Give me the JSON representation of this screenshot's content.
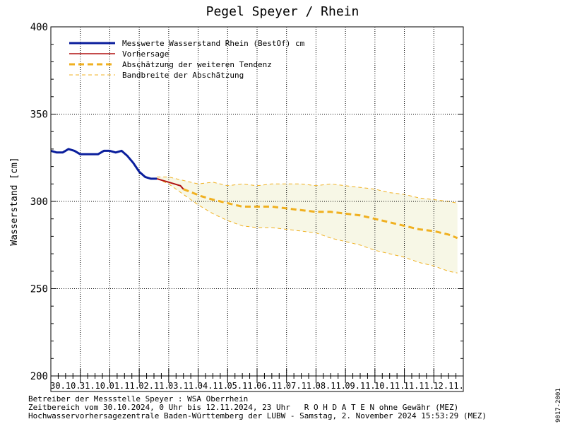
{
  "footer": {
    "line1": "Betreiber der Messstelle Speyer : WSA Oberrhein",
    "line2": "Zeitbereich vom 30.10.2024, 0 Uhr bis 12.11.2024, 23 Uhr   R O H D A T E N ohne Gewähr (MEZ)",
    "line3": "Hochwasservorhersagezentrale Baden-Württemberg der LUBW - Samstag, 2. November 2024 15:53:29 (MEZ)"
  },
  "side_id": "9017-2001",
  "colors": {
    "measured": "#0a1e9c",
    "forecast": "#b01010",
    "estimate": "#f0b020",
    "band_fill": "#f7f7e6",
    "grid": "#000000"
  },
  "chart_data": {
    "type": "line",
    "title": "Pegel Speyer / Rhein",
    "ylabel": "Wasserstand [cm]",
    "xlabel": "",
    "ylim": [
      200,
      400
    ],
    "yticks": [
      200,
      250,
      300,
      350,
      400
    ],
    "x_unit": "days since 30.10.2024 00:00",
    "xlim": [
      0,
      14
    ],
    "categories": [
      "30.10.",
      "31.10.",
      "01.11.",
      "02.11.",
      "03.11.",
      "04.11.",
      "05.11.",
      "06.11.",
      "07.11.",
      "08.11.",
      "09.11.",
      "10.11.",
      "11.11.",
      "12.11."
    ],
    "grid": true,
    "legend_position": "top-left",
    "legend": [
      "Messwerte Wasserstand Rhein (BestOf)  cm",
      "Vorhersage",
      "Abschätzung der weiteren Tendenz",
      "Bandbreite der Abschätzung"
    ],
    "series": [
      {
        "name": "Messwerte Wasserstand Rhein (BestOf)  cm",
        "style": "solid-thick",
        "x": [
          0,
          0.2,
          0.4,
          0.6,
          0.8,
          1.0,
          1.2,
          1.4,
          1.6,
          1.8,
          2.0,
          2.2,
          2.4,
          2.6,
          2.8,
          3.0,
          3.2,
          3.4,
          3.6
        ],
        "y": [
          329,
          328,
          328,
          330,
          329,
          327,
          327,
          327,
          327,
          329,
          329,
          328,
          329,
          326,
          322,
          317,
          314,
          313,
          313
        ]
      },
      {
        "name": "Vorhersage",
        "style": "solid",
        "x": [
          3.6,
          3.8,
          4.0,
          4.2,
          4.4,
          4.5
        ],
        "y": [
          313,
          312,
          311,
          310,
          309,
          307
        ]
      },
      {
        "name": "Abschätzung der weiteren Tendenz",
        "style": "dashed-thick",
        "x": [
          4.5,
          4.8,
          5.1,
          5.5,
          6.0,
          6.5,
          7.0,
          7.5,
          8.0,
          8.5,
          9.0,
          9.5,
          10.0,
          10.5,
          11.0,
          11.5,
          12.0,
          12.5,
          13.0,
          13.5,
          13.8
        ],
        "y": [
          307,
          305,
          303,
          301,
          299,
          297,
          297,
          297,
          296,
          295,
          294,
          294,
          293,
          292,
          290,
          288,
          286,
          284,
          283,
          281,
          279
        ]
      },
      {
        "name": "Bandbreite der Abschätzung",
        "style": "dashed-thin-band",
        "x": [
          3.6,
          4.0,
          4.5,
          5.0,
          5.5,
          6.0,
          6.5,
          7.0,
          7.5,
          8.0,
          8.5,
          9.0,
          9.5,
          10.0,
          10.5,
          11.0,
          11.5,
          12.0,
          12.5,
          13.0,
          13.5,
          13.8
        ],
        "upper": [
          314,
          314,
          312,
          310,
          311,
          309,
          310,
          309,
          310,
          310,
          310,
          309,
          310,
          309,
          308,
          307,
          305,
          304,
          302,
          301,
          300,
          299
        ],
        "lower": [
          313,
          310,
          304,
          298,
          293,
          289,
          286,
          285,
          285,
          284,
          283,
          282,
          279,
          277,
          275,
          272,
          270,
          268,
          265,
          263,
          260,
          259
        ]
      }
    ]
  }
}
